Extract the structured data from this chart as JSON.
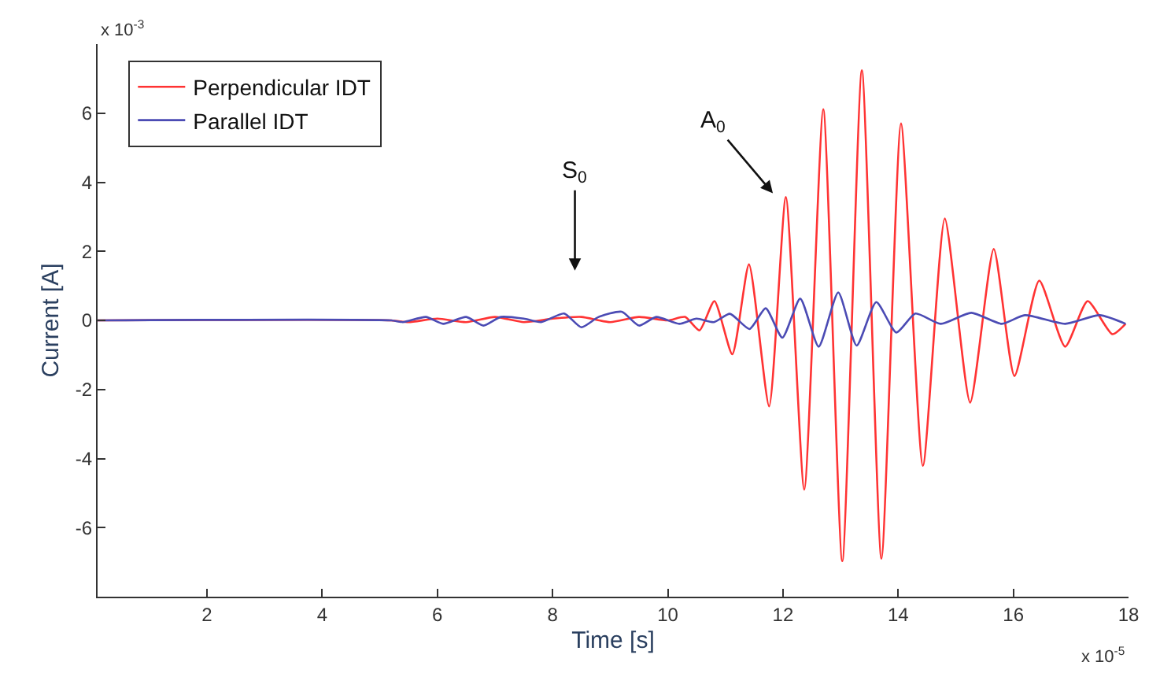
{
  "chart_data": {
    "type": "line",
    "xlabel": "Time [s]",
    "ylabel": "Current [A]",
    "xlim": [
      0.1,
      18
    ],
    "xticks": [
      2,
      4,
      6,
      8,
      10,
      12,
      14,
      16,
      18
    ],
    "ylim": [
      -8,
      8
    ],
    "yticks": [
      -6,
      -4,
      -2,
      0,
      2,
      4,
      6
    ],
    "legend": "top left",
    "marker": "none",
    "line_style": "solid",
    "annotations": [
      "x 10$^{-3}$",
      "x 10$^{-5}$",
      "S$_{0}$",
      "A$_{0}$"
    ],
    "series": [
      {
        "name": "Perpendicular IDT",
        "color": "#ff3333",
        "x": [
          0.1,
          5.2,
          5.5,
          6.0,
          6.5,
          7.0,
          7.5,
          8.0,
          8.5,
          9.0,
          9.5,
          10.0,
          10.3,
          10.55,
          10.81,
          11.12,
          11.41,
          11.76,
          12.05,
          12.37,
          12.7,
          13.03,
          13.37,
          13.71,
          14.05,
          14.43,
          14.81,
          15.25,
          15.66,
          16.02,
          16.45,
          16.9,
          17.29,
          17.72,
          17.95
        ],
        "values": [
          0,
          0,
          -0.05,
          0.05,
          -0.05,
          0.1,
          -0.05,
          0.05,
          0.1,
          -0.05,
          0.1,
          0,
          0.1,
          -0.29,
          0.56,
          -0.98,
          1.62,
          -2.49,
          3.57,
          -4.9,
          6.11,
          -6.97,
          7.24,
          -6.9,
          5.7,
          -4.21,
          2.95,
          -2.38,
          2.07,
          -1.61,
          1.15,
          -0.76,
          0.56,
          -0.4,
          -0.1
        ]
      },
      {
        "name": "Parallel IDT",
        "color": "#4b4bb4",
        "x": [
          0.1,
          5.2,
          5.4,
          5.8,
          6.1,
          6.5,
          6.8,
          7.1,
          7.5,
          7.8,
          8.2,
          8.5,
          8.8,
          9.2,
          9.5,
          9.8,
          10.2,
          10.5,
          10.8,
          11.08,
          11.42,
          11.7,
          11.99,
          12.3,
          12.62,
          12.96,
          13.28,
          13.62,
          13.97,
          14.3,
          14.74,
          15.27,
          15.8,
          16.2,
          16.9,
          17.5,
          17.95
        ],
        "values": [
          0,
          0,
          -0.05,
          0.1,
          -0.1,
          0.1,
          -0.15,
          0.1,
          0.05,
          -0.05,
          0.2,
          -0.2,
          0.1,
          0.25,
          -0.15,
          0.1,
          -0.1,
          0.05,
          -0.05,
          0.19,
          -0.25,
          0.35,
          -0.5,
          0.63,
          -0.76,
          0.81,
          -0.73,
          0.53,
          -0.35,
          0.2,
          -0.1,
          0.22,
          -0.1,
          0.15,
          -0.1,
          0.15,
          -0.1
        ]
      }
    ]
  }
}
